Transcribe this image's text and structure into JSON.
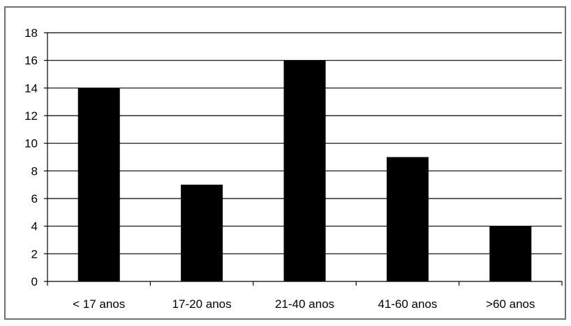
{
  "chart_data": {
    "type": "bar",
    "title": "",
    "xlabel": "",
    "ylabel": "",
    "categories": [
      "< 17 anos",
      "17-20 anos",
      "21-40 anos",
      "41-60 anos",
      ">60 anos"
    ],
    "values": [
      14,
      7,
      16,
      9,
      4
    ],
    "ylim": [
      0,
      18
    ],
    "yticks": [
      0,
      2,
      4,
      6,
      8,
      10,
      12,
      14,
      16,
      18
    ],
    "ytick_labels": [
      "0",
      "2",
      "4",
      "6",
      "8",
      "10",
      "12",
      "14",
      "16",
      "18"
    ],
    "grid": true,
    "legend": "none",
    "bar_color": "#000000",
    "grid_color": "#000000",
    "background_color": "#ffffff",
    "frame_color": "#6f6f6f"
  }
}
